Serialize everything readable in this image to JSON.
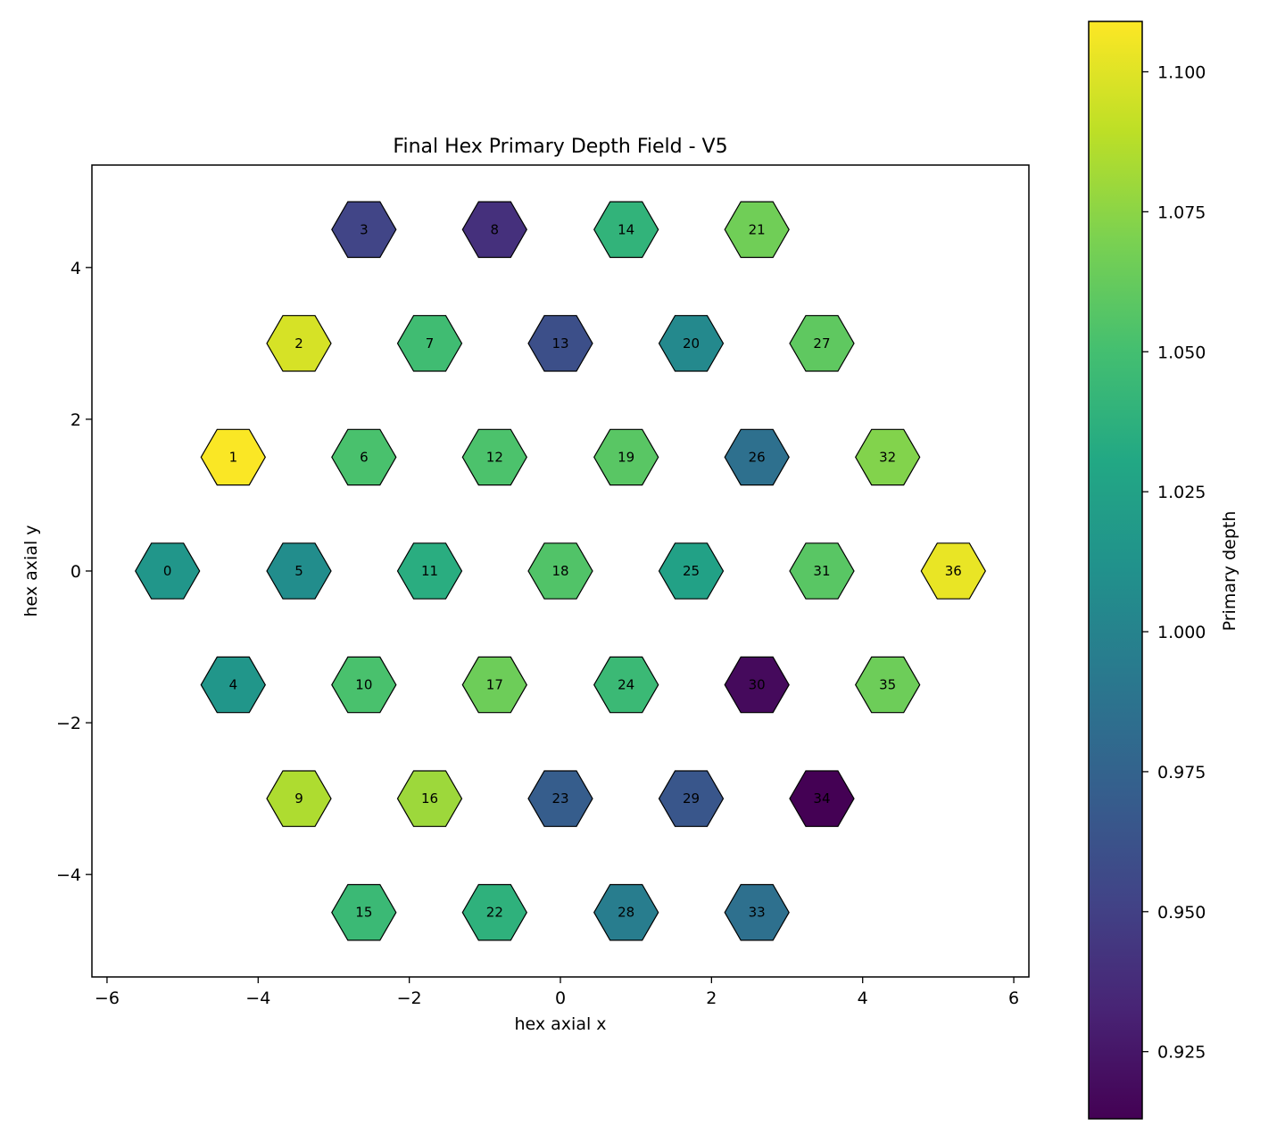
{
  "chart_data": {
    "type": "heatmap",
    "title": "Final Hex Primary Depth Field - V5",
    "xlabel": "hex axial x",
    "ylabel": "hex axial y",
    "xlim": [
      -6.2,
      6.2
    ],
    "ylim": [
      -5.35,
      5.35
    ],
    "xticks": [
      -6,
      -4,
      -2,
      0,
      2,
      4,
      6
    ],
    "xtick_labels": [
      "−6",
      "−4",
      "−2",
      "0",
      "2",
      "4",
      "6"
    ],
    "yticks": [
      -4,
      -2,
      0,
      2,
      4
    ],
    "ytick_labels": [
      "−4",
      "−2",
      "0",
      "2",
      "4"
    ],
    "grid": false,
    "colormap": "viridis",
    "colorbar": {
      "label": "Primary depth",
      "range": [
        0.913,
        1.109
      ],
      "ticks": [
        0.925,
        0.95,
        0.975,
        1.0,
        1.025,
        1.05,
        1.075,
        1.1
      ],
      "tick_labels": [
        "0.925",
        "0.950",
        "0.975",
        "1.000",
        "1.025",
        "1.050",
        "1.075",
        "1.100"
      ]
    },
    "cells": [
      {
        "id": "0",
        "x": -5.2,
        "y": 0,
        "value": 1.015
      },
      {
        "id": "1",
        "x": -4.33,
        "y": 1.5,
        "value": 1.108
      },
      {
        "id": "2",
        "x": -3.46,
        "y": 3.0,
        "value": 1.097
      },
      {
        "id": "3",
        "x": -2.6,
        "y": 4.5,
        "value": 0.953
      },
      {
        "id": "4",
        "x": -4.33,
        "y": -1.5,
        "value": 1.015
      },
      {
        "id": "5",
        "x": -3.46,
        "y": 0,
        "value": 1.008
      },
      {
        "id": "6",
        "x": -2.6,
        "y": 1.5,
        "value": 1.052
      },
      {
        "id": "7",
        "x": -1.73,
        "y": 3.0,
        "value": 1.048
      },
      {
        "id": "8",
        "x": -0.87,
        "y": 4.5,
        "value": 0.94
      },
      {
        "id": "9",
        "x": -3.46,
        "y": -3.0,
        "value": 1.085
      },
      {
        "id": "10",
        "x": -2.6,
        "y": -1.5,
        "value": 1.052
      },
      {
        "id": "11",
        "x": -1.73,
        "y": 0,
        "value": 1.035
      },
      {
        "id": "12",
        "x": -0.87,
        "y": 1.5,
        "value": 1.053
      },
      {
        "id": "13",
        "x": 0,
        "y": 3.0,
        "value": 0.96
      },
      {
        "id": "14",
        "x": 0.87,
        "y": 4.5,
        "value": 1.04
      },
      {
        "id": "15",
        "x": -2.6,
        "y": -4.5,
        "value": 1.045
      },
      {
        "id": "16",
        "x": -1.73,
        "y": -3.0,
        "value": 1.08
      },
      {
        "id": "17",
        "x": -0.87,
        "y": -1.5,
        "value": 1.065
      },
      {
        "id": "18",
        "x": 0,
        "y": 0,
        "value": 1.055
      },
      {
        "id": "19",
        "x": 0.87,
        "y": 1.5,
        "value": 1.058
      },
      {
        "id": "20",
        "x": 1.73,
        "y": 3.0,
        "value": 1.005
      },
      {
        "id": "21",
        "x": 2.6,
        "y": 4.5,
        "value": 1.066
      },
      {
        "id": "22",
        "x": -0.87,
        "y": -4.5,
        "value": 1.038
      },
      {
        "id": "23",
        "x": 0,
        "y": -3.0,
        "value": 0.97
      },
      {
        "id": "24",
        "x": 0.87,
        "y": -1.5,
        "value": 1.045
      },
      {
        "id": "25",
        "x": 1.73,
        "y": 0,
        "value": 1.025
      },
      {
        "id": "26",
        "x": 2.6,
        "y": 1.5,
        "value": 0.985
      },
      {
        "id": "27",
        "x": 3.46,
        "y": 3.0,
        "value": 1.06
      },
      {
        "id": "28",
        "x": 0.87,
        "y": -4.5,
        "value": 0.995
      },
      {
        "id": "29",
        "x": 1.73,
        "y": -3.0,
        "value": 0.965
      },
      {
        "id": "30",
        "x": 2.6,
        "y": -1.5,
        "value": 0.918
      },
      {
        "id": "31",
        "x": 3.46,
        "y": 0,
        "value": 1.058
      },
      {
        "id": "32",
        "x": 4.33,
        "y": 1.5,
        "value": 1.072
      },
      {
        "id": "33",
        "x": 2.6,
        "y": -4.5,
        "value": 0.985
      },
      {
        "id": "34",
        "x": 3.46,
        "y": -3.0,
        "value": 0.913
      },
      {
        "id": "35",
        "x": 4.33,
        "y": -1.5,
        "value": 1.065
      },
      {
        "id": "36",
        "x": 5.2,
        "y": 0,
        "value": 1.103
      }
    ]
  }
}
